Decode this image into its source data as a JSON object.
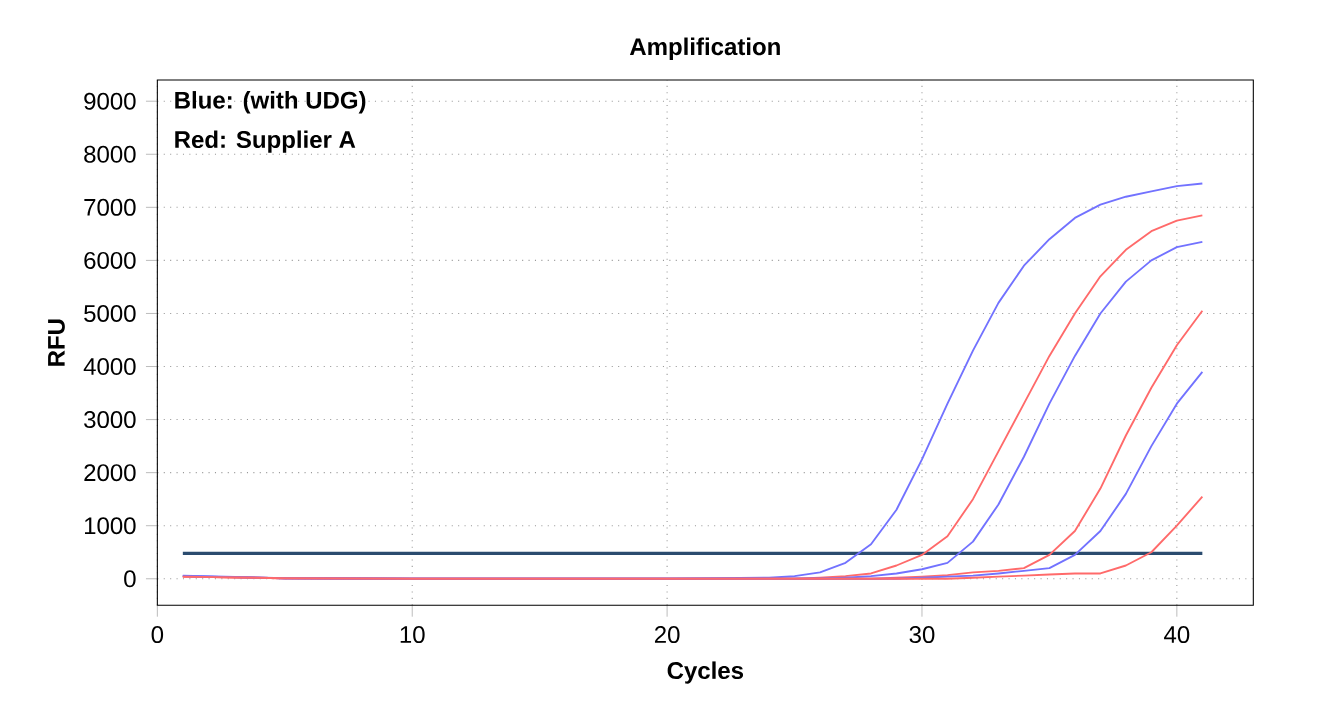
{
  "chart_data": {
    "type": "line",
    "title": "Amplification",
    "xlabel": "Cycles",
    "ylabel": "RFU",
    "annotations": [
      "Blue: (with UDG)",
      "Red: Supplier A"
    ],
    "x": [
      1,
      5,
      10,
      15,
      20,
      24,
      25,
      26,
      27,
      28,
      29,
      30,
      31,
      32,
      33,
      34,
      35,
      36,
      37,
      38,
      39,
      40,
      41
    ],
    "series": [
      {
        "color": "#7272ff",
        "values": [
          60,
          10,
          0,
          0,
          0,
          20,
          50,
          120,
          300,
          650,
          1300,
          2250,
          3300,
          4300,
          5200,
          5900,
          6400,
          6800,
          7050,
          7200,
          7300,
          7400,
          7450
        ]
      },
      {
        "color": "#ff6a6a",
        "values": [
          40,
          10,
          0,
          0,
          0,
          0,
          0,
          20,
          50,
          100,
          250,
          450,
          800,
          1500,
          2400,
          3300,
          4200,
          5000,
          5700,
          6200,
          6550,
          6750,
          6850
        ]
      },
      {
        "color": "#7272ff",
        "values": [
          50,
          10,
          0,
          0,
          0,
          0,
          0,
          0,
          20,
          50,
          100,
          180,
          300,
          700,
          1400,
          2300,
          3300,
          4200,
          5000,
          5600,
          6000,
          6250,
          6350
        ]
      },
      {
        "color": "#ff6a6a",
        "values": [
          40,
          10,
          0,
          0,
          0,
          0,
          0,
          0,
          0,
          0,
          20,
          40,
          70,
          120,
          150,
          200,
          450,
          900,
          1700,
          2700,
          3600,
          4400,
          5050
        ]
      },
      {
        "color": "#7272ff",
        "values": [
          50,
          10,
          0,
          0,
          0,
          0,
          0,
          0,
          0,
          0,
          0,
          20,
          40,
          60,
          100,
          150,
          200,
          450,
          900,
          1600,
          2500,
          3300,
          3900
        ]
      },
      {
        "color": "#ff6a6a",
        "values": [
          40,
          10,
          0,
          0,
          0,
          0,
          0,
          0,
          0,
          0,
          0,
          0,
          0,
          20,
          40,
          60,
          80,
          100,
          100,
          250,
          500,
          1000,
          1550
        ]
      }
    ],
    "xlim": [
      0,
      43
    ],
    "ylim": [
      -500,
      9400
    ],
    "xticks": [
      0,
      10,
      20,
      30,
      40
    ],
    "yticks": [
      0,
      1000,
      2000,
      3000,
      4000,
      5000,
      6000,
      7000,
      8000,
      9000
    ],
    "grid": true,
    "marker": "none",
    "ref_lines": [
      {
        "axis": "y",
        "value": 480,
        "color": "#2b4c6f"
      }
    ]
  }
}
